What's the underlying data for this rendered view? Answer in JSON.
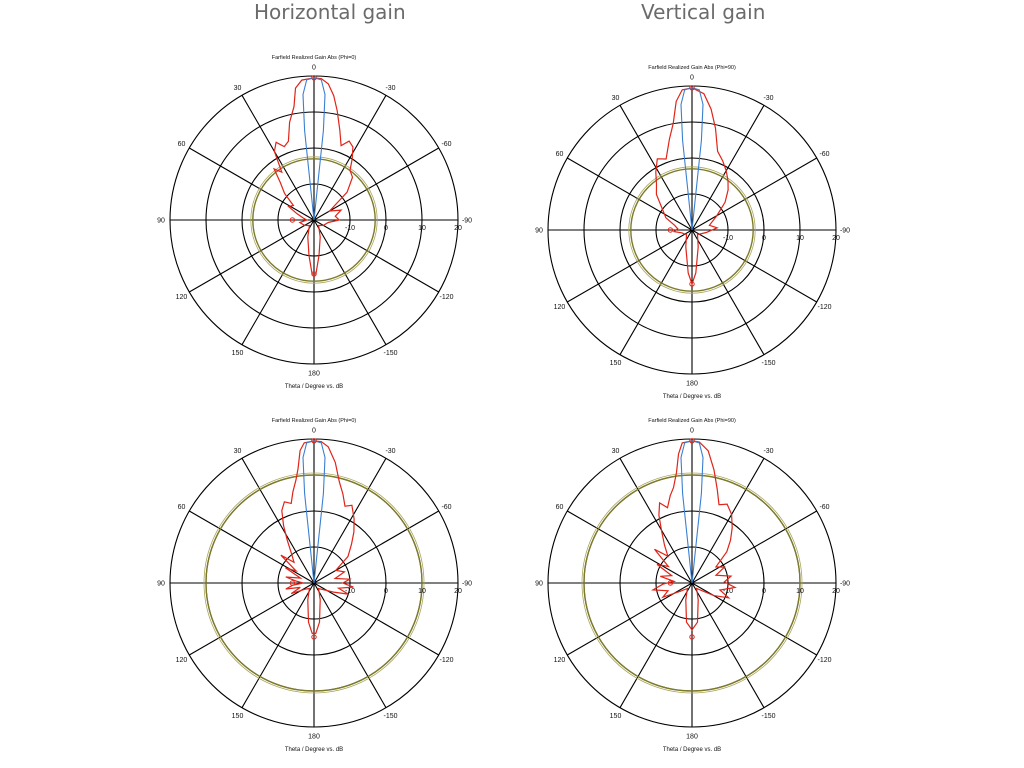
{
  "headings": {
    "left": "Horizontal gain",
    "right": "Vertical gain"
  },
  "colors": {
    "pattern": "#e02418",
    "beam": "#3a7fd0",
    "threshold": "#7d7a2a",
    "grid": "#000000"
  },
  "chart_data": [
    {
      "type": "polar",
      "title": "Farfield Realized Gain Abs (Phi=0)",
      "xlabel": "Theta / Degree vs. dB",
      "angle_labels": [
        "0",
        "30",
        "60",
        "90",
        "120",
        "150",
        "180",
        "-150",
        "-120",
        "-90",
        "-60",
        "-30"
      ],
      "radial_labels": [
        "-10",
        "0",
        "10",
        "20"
      ],
      "rlim": [
        -20,
        20
      ],
      "grid": true,
      "threshold_ring_db": -3,
      "series": [
        {
          "values": [
            [
              0,
              19.5
            ],
            [
              5,
              19
            ],
            [
              8,
              17
            ],
            [
              10,
              12
            ],
            [
              14,
              8
            ],
            [
              18,
              3
            ],
            [
              22,
              2
            ],
            [
              26,
              4
            ],
            [
              30,
              2
            ],
            [
              34,
              -4
            ],
            [
              38,
              -2
            ],
            [
              42,
              -6
            ],
            [
              48,
              -9
            ],
            [
              55,
              -13
            ],
            [
              62,
              -12
            ],
            [
              70,
              -15
            ],
            [
              80,
              -17
            ],
            [
              90,
              -18
            ],
            [
              100,
              -16
            ],
            [
              120,
              -17
            ],
            [
              140,
              -18
            ],
            [
              160,
              -15
            ],
            [
              172,
              -10
            ],
            [
              178,
              -5
            ],
            [
              180,
              -5
            ],
            [
              182,
              -5
            ],
            [
              188,
              -10
            ],
            [
              200,
              -15
            ],
            [
              220,
              -18
            ],
            [
              240,
              -17
            ],
            [
              260,
              -16
            ],
            [
              270,
              -13
            ],
            [
              280,
              -14
            ],
            [
              290,
              -12
            ],
            [
              300,
              -15
            ],
            [
              310,
              -8
            ],
            [
              318,
              -4
            ],
            [
              324,
              -3
            ],
            [
              328,
              0
            ],
            [
              332,
              3
            ],
            [
              336,
              4
            ],
            [
              340,
              2
            ],
            [
              344,
              6
            ],
            [
              348,
              11
            ],
            [
              351,
              15
            ],
            [
              354,
              18
            ],
            [
              357,
              19.3
            ],
            [
              360,
              19.5
            ]
          ]
        },
        {
          "values": [
            [
              0,
              19.5
            ],
            [
              3,
              19
            ],
            [
              5,
              15
            ],
            [
              6,
              5
            ],
            [
              7,
              -20
            ],
            [
              353,
              -20
            ],
            [
              354,
              5
            ],
            [
              355,
              15
            ],
            [
              357,
              19
            ],
            [
              360,
              19.5
            ]
          ]
        }
      ]
    },
    {
      "type": "polar",
      "title": "Farfield Realized Gain Abs (Phi=90)",
      "xlabel": "Theta / Degree vs. dB",
      "angle_labels": [
        "0",
        "30",
        "60",
        "90",
        "120",
        "150",
        "180",
        "-150",
        "-120",
        "-90",
        "-60",
        "-30"
      ],
      "radial_labels": [
        "-10",
        "0",
        "10",
        "20"
      ],
      "rlim": [
        -20,
        20
      ],
      "grid": true,
      "threshold_ring_db": -3,
      "series": [
        {
          "values": [
            [
              0,
              19.5
            ],
            [
              4,
              19
            ],
            [
              7,
              16
            ],
            [
              10,
              10
            ],
            [
              14,
              6
            ],
            [
              20,
              1
            ],
            [
              26,
              2
            ],
            [
              32,
              -1
            ],
            [
              38,
              -4
            ],
            [
              45,
              -6
            ],
            [
              55,
              -10
            ],
            [
              65,
              -12
            ],
            [
              75,
              -15
            ],
            [
              85,
              -16
            ],
            [
              95,
              -15
            ],
            [
              105,
              -17
            ],
            [
              130,
              -18
            ],
            [
              160,
              -15
            ],
            [
              175,
              -8
            ],
            [
              180,
              -5
            ],
            [
              185,
              -8
            ],
            [
              200,
              -15
            ],
            [
              230,
              -18
            ],
            [
              260,
              -16
            ],
            [
              275,
              -13
            ],
            [
              285,
              -15
            ],
            [
              300,
              -12
            ],
            [
              310,
              -8
            ],
            [
              318,
              -5
            ],
            [
              324,
              -3
            ],
            [
              330,
              -1
            ],
            [
              336,
              1
            ],
            [
              342,
              3
            ],
            [
              347,
              9
            ],
            [
              351,
              14
            ],
            [
              355,
              18
            ],
            [
              360,
              19.5
            ]
          ]
        },
        {
          "values": [
            [
              0,
              19.5
            ],
            [
              3,
              19
            ],
            [
              5,
              15
            ],
            [
              6,
              5
            ],
            [
              7,
              -20
            ],
            [
              353,
              -20
            ],
            [
              354,
              5
            ],
            [
              355,
              15
            ],
            [
              357,
              19
            ],
            [
              360,
              19.5
            ]
          ]
        }
      ]
    },
    {
      "type": "polar",
      "title": "Farfield Realized Gain Abs (Phi=0)",
      "xlabel": "Theta / Degree vs. dB",
      "angle_labels": [
        "0",
        "30",
        "60",
        "90",
        "120",
        "150",
        "180",
        "-150",
        "-120",
        "-90",
        "-60",
        "-30"
      ],
      "radial_labels": [
        "-10",
        "0",
        "10",
        "20"
      ],
      "rlim": [
        -20,
        20
      ],
      "grid": true,
      "threshold_ring_db": 10,
      "series": [
        {
          "values": [
            [
              0,
              19.5
            ],
            [
              4,
              19
            ],
            [
              6,
              17
            ],
            [
              8,
              12
            ],
            [
              10,
              9
            ],
            [
              13,
              6
            ],
            [
              16,
              3
            ],
            [
              20,
              4
            ],
            [
              24,
              2
            ],
            [
              28,
              -2
            ],
            [
              32,
              -6
            ],
            [
              38,
              -10
            ],
            [
              44,
              -12
            ],
            [
              50,
              -8
            ],
            [
              56,
              -14
            ],
            [
              62,
              -11
            ],
            [
              70,
              -16
            ],
            [
              78,
              -12
            ],
            [
              84,
              -15
            ],
            [
              90,
              -17
            ],
            [
              96,
              -14
            ],
            [
              102,
              -12
            ],
            [
              108,
              -16
            ],
            [
              115,
              -13
            ],
            [
              125,
              -17
            ],
            [
              140,
              -18
            ],
            [
              160,
              -15
            ],
            [
              172,
              -9
            ],
            [
              178,
              -6
            ],
            [
              180,
              -6
            ],
            [
              182,
              -6
            ],
            [
              188,
              -9
            ],
            [
              200,
              -15
            ],
            [
              220,
              -18
            ],
            [
              245,
              -14
            ],
            [
              252,
              -10
            ],
            [
              258,
              -13
            ],
            [
              264,
              -9
            ],
            [
              270,
              -12
            ],
            [
              276,
              -10
            ],
            [
              282,
              -14
            ],
            [
              290,
              -11
            ],
            [
              300,
              -13
            ],
            [
              308,
              -8
            ],
            [
              316,
              -5
            ],
            [
              322,
              -2
            ],
            [
              328,
              1
            ],
            [
              334,
              4
            ],
            [
              338,
              3
            ],
            [
              342,
              6
            ],
            [
              346,
              9
            ],
            [
              350,
              14
            ],
            [
              354,
              18
            ],
            [
              357,
              19.3
            ],
            [
              360,
              19.5
            ]
          ]
        },
        {
          "values": [
            [
              0,
              19.5
            ],
            [
              3,
              19
            ],
            [
              5,
              15
            ],
            [
              6,
              5
            ],
            [
              7,
              -20
            ],
            [
              353,
              -20
            ],
            [
              354,
              5
            ],
            [
              355,
              15
            ],
            [
              357,
              19
            ],
            [
              360,
              19.5
            ]
          ]
        }
      ]
    },
    {
      "type": "polar",
      "title": "Farfield Realized Gain Abs (Phi=90)",
      "xlabel": "Theta / Degree vs. dB",
      "angle_labels": [
        "0",
        "30",
        "60",
        "90",
        "120",
        "150",
        "180",
        "-150",
        "-120",
        "-90",
        "-60",
        "-30"
      ],
      "radial_labels": [
        "-10",
        "0",
        "10",
        "20"
      ],
      "rlim": [
        -20,
        20
      ],
      "grid": true,
      "threshold_ring_db": 10,
      "series": [
        {
          "values": [
            [
              0,
              19.5
            ],
            [
              4,
              19
            ],
            [
              6,
              16
            ],
            [
              8,
              11
            ],
            [
              11,
              7
            ],
            [
              14,
              5
            ],
            [
              18,
              2
            ],
            [
              22,
              4
            ],
            [
              26,
              1
            ],
            [
              30,
              -3
            ],
            [
              36,
              -7
            ],
            [
              42,
              -10
            ],
            [
              48,
              -6
            ],
            [
              55,
              -12
            ],
            [
              62,
              -9
            ],
            [
              70,
              -14
            ],
            [
              78,
              -11
            ],
            [
              85,
              -15
            ],
            [
              92,
              -12
            ],
            [
              100,
              -9
            ],
            [
              108,
              -13
            ],
            [
              116,
              -11
            ],
            [
              125,
              -16
            ],
            [
              140,
              -18
            ],
            [
              160,
              -15
            ],
            [
              172,
              -9
            ],
            [
              180,
              -7
            ],
            [
              188,
              -9
            ],
            [
              200,
              -15
            ],
            [
              220,
              -18
            ],
            [
              240,
              -13
            ],
            [
              248,
              -9
            ],
            [
              256,
              -12
            ],
            [
              264,
              -8
            ],
            [
              272,
              -11
            ],
            [
              280,
              -9
            ],
            [
              288,
              -13
            ],
            [
              296,
              -10
            ],
            [
              304,
              -12
            ],
            [
              312,
              -7
            ],
            [
              318,
              -4
            ],
            [
              324,
              -1
            ],
            [
              330,
              2
            ],
            [
              336,
              4
            ],
            [
              341,
              3
            ],
            [
              345,
              7
            ],
            [
              349,
              12
            ],
            [
              353,
              17
            ],
            [
              357,
              19.2
            ],
            [
              360,
              19.5
            ]
          ]
        },
        {
          "values": [
            [
              0,
              19.5
            ],
            [
              3,
              19
            ],
            [
              5,
              15
            ],
            [
              6,
              5
            ],
            [
              7,
              -20
            ],
            [
              353,
              -20
            ],
            [
              354,
              5
            ],
            [
              355,
              15
            ],
            [
              357,
              19
            ],
            [
              360,
              19.5
            ]
          ]
        }
      ]
    }
  ]
}
